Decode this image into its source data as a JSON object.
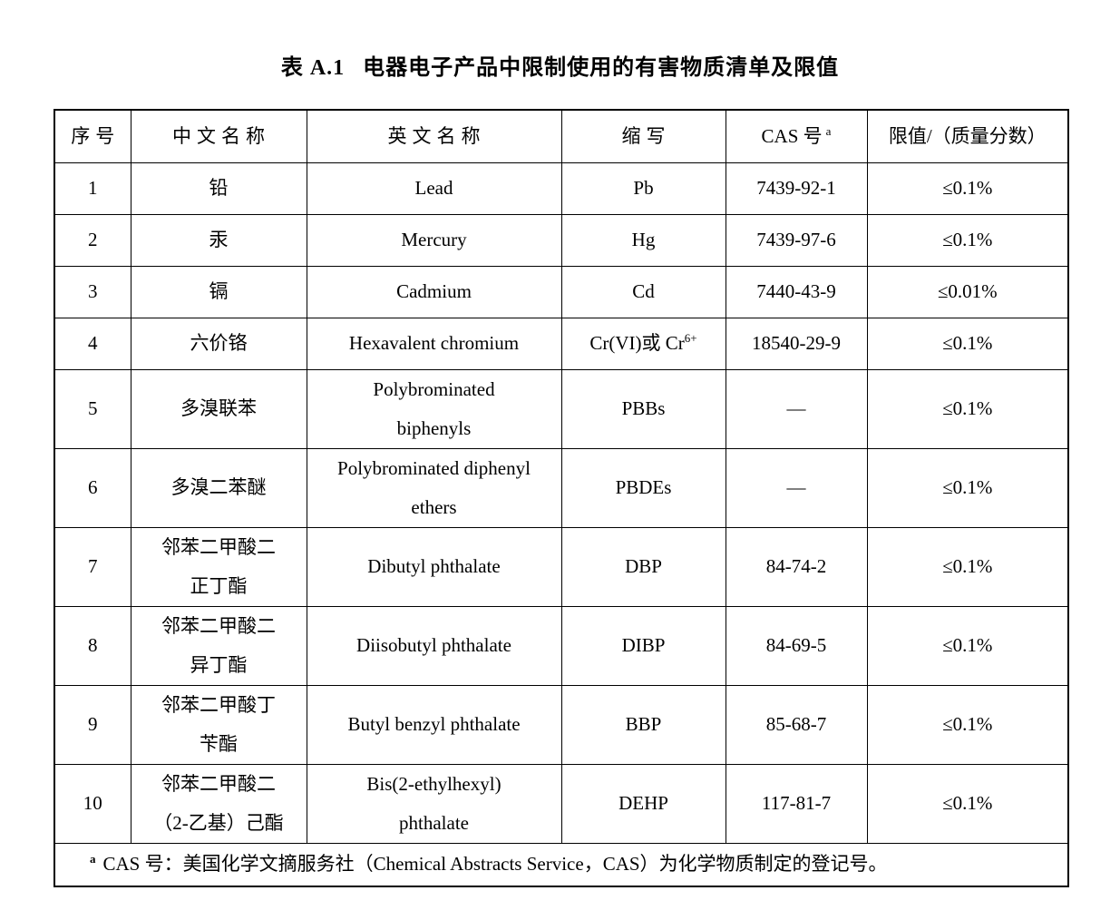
{
  "page": {
    "title_label": "表 A.1",
    "title_text": "电器电子产品中限制使用的有害物质清单及限值"
  },
  "table": {
    "headers": [
      "序号",
      "中文名称",
      "英文名称",
      "缩写",
      "CAS 号",
      "限值/（质量分数）"
    ],
    "cas_header_sup": "a",
    "rows": [
      {
        "seq": "1",
        "cn": "铅",
        "en": "Lead",
        "abbr": "Pb",
        "cas": "7439-92-1",
        "limit": "≤0.1%"
      },
      {
        "seq": "2",
        "cn": "汞",
        "en": "Mercury",
        "abbr": "Hg",
        "cas": "7439-97-6",
        "limit": "≤0.1%"
      },
      {
        "seq": "3",
        "cn": "镉",
        "en": "Cadmium",
        "abbr": "Cd",
        "cas": "7440-43-9",
        "limit": "≤0.01%"
      },
      {
        "seq": "4",
        "cn": "六价铬",
        "en": "Hexavalent chromium",
        "abbr": "Cr(VI)或 Cr",
        "abbr_sup": "6+",
        "cas": "18540-29-9",
        "limit": "≤0.1%"
      },
      {
        "seq": "5",
        "cn": "多溴联苯",
        "en": "Polybrominated\nbiphenyls",
        "abbr": "PBBs",
        "cas": "—",
        "limit": "≤0.1%"
      },
      {
        "seq": "6",
        "cn": "多溴二苯醚",
        "en": "Polybrominated diphenyl\nethers",
        "abbr": "PBDEs",
        "cas": "—",
        "limit": "≤0.1%"
      },
      {
        "seq": "7",
        "cn": "邻苯二甲酸二\n正丁酯",
        "en": "Dibutyl phthalate",
        "abbr": "DBP",
        "cas": "84-74-2",
        "limit": "≤0.1%"
      },
      {
        "seq": "8",
        "cn": "邻苯二甲酸二\n异丁酯",
        "en": "Diisobutyl phthalate",
        "abbr": "DIBP",
        "cas": "84-69-5",
        "limit": "≤0.1%"
      },
      {
        "seq": "9",
        "cn": "邻苯二甲酸丁\n苄酯",
        "en": "Butyl benzyl phthalate",
        "abbr": "BBP",
        "cas": "85-68-7",
        "limit": "≤0.1%"
      },
      {
        "seq": "10",
        "cn": "邻苯二甲酸二\n（2-乙基）己酯",
        "en": "Bis(2-ethylhexyl)\nphthalate",
        "abbr": "DEHP",
        "cas": "117-81-7",
        "limit": "≤0.1%"
      }
    ],
    "footnote": {
      "marker": "a",
      "text": "CAS 号：美国化学文摘服务社（Chemical Abstracts Service，CAS）为化学物质制定的登记号。"
    }
  }
}
